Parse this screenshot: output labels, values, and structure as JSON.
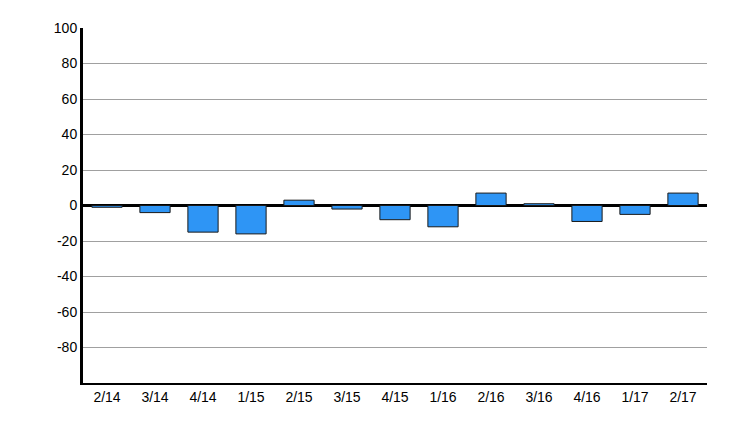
{
  "chart_data": {
    "type": "bar",
    "categories": [
      "2/14",
      "3/14",
      "4/14",
      "1/15",
      "2/15",
      "3/15",
      "4/15",
      "1/16",
      "2/16",
      "3/16",
      "4/16",
      "1/17",
      "2/17"
    ],
    "values": [
      -1,
      -4,
      -15,
      -16,
      3,
      -2,
      -8,
      -12,
      7,
      1,
      -9,
      -5,
      7
    ],
    "color": "#2e95f5",
    "ylim": [
      -100,
      100
    ],
    "yticks": [
      -80,
      -60,
      -40,
      -20,
      0,
      20,
      40,
      60,
      80,
      100
    ],
    "grid": true
  }
}
